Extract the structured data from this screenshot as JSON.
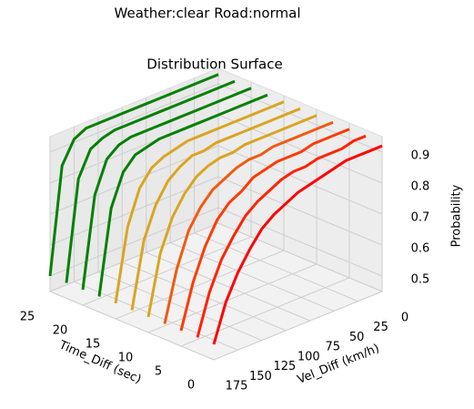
{
  "chart_data": {
    "type": "surface3d",
    "suptitle": "Weather:clear Road:normal",
    "title": "Distribution Surface",
    "xlabel": "Time_Diff (sec)",
    "ylabel": "Vel_Diff (km/h)",
    "zlabel": "Probability",
    "xlim": [
      0,
      25
    ],
    "ylim": [
      0,
      175
    ],
    "zlim": [
      0.45,
      0.95
    ],
    "xticks": [
      0,
      5,
      10,
      15,
      20,
      25
    ],
    "yticks": [
      0,
      25,
      50,
      75,
      100,
      125,
      150,
      175
    ],
    "zticks": [
      0.5,
      0.6,
      0.7,
      0.8,
      0.9
    ],
    "grid": true,
    "y": [
      0,
      12.5,
      25,
      37.5,
      50,
      62.5,
      75,
      87.5,
      100,
      112.5,
      125,
      137.5,
      150,
      162.5,
      175
    ],
    "rows": [
      {
        "x": 0,
        "color": "#ff0000",
        "values": [
          0.92,
          0.92,
          0.92,
          0.92,
          0.91,
          0.9,
          0.89,
          0.88,
          0.86,
          0.84,
          0.81,
          0.76,
          0.7,
          0.62,
          0.5
        ]
      },
      {
        "x": 2.5,
        "color": "#ff2200",
        "values": [
          0.93,
          0.93,
          0.92,
          0.92,
          0.92,
          0.91,
          0.91,
          0.9,
          0.88,
          0.86,
          0.83,
          0.78,
          0.72,
          0.63,
          0.5
        ]
      },
      {
        "x": 5,
        "color": "#ff3a00",
        "values": [
          0.93,
          0.93,
          0.93,
          0.93,
          0.92,
          0.92,
          0.92,
          0.91,
          0.9,
          0.87,
          0.85,
          0.81,
          0.74,
          0.64,
          0.5
        ]
      },
      {
        "x": 7.5,
        "color": "#f05a10",
        "values": [
          0.93,
          0.93,
          0.93,
          0.93,
          0.93,
          0.93,
          0.92,
          0.92,
          0.91,
          0.89,
          0.87,
          0.83,
          0.77,
          0.66,
          0.5
        ]
      },
      {
        "x": 10,
        "color": "#daa520",
        "values": [
          0.93,
          0.93,
          0.93,
          0.93,
          0.93,
          0.93,
          0.93,
          0.92,
          0.92,
          0.91,
          0.89,
          0.85,
          0.79,
          0.69,
          0.5
        ]
      },
      {
        "x": 12.5,
        "color": "#daa520",
        "values": [
          0.93,
          0.93,
          0.93,
          0.93,
          0.93,
          0.93,
          0.93,
          0.93,
          0.92,
          0.92,
          0.9,
          0.87,
          0.81,
          0.71,
          0.5
        ]
      },
      {
        "x": 15,
        "color": "#daa520",
        "values": [
          0.93,
          0.93,
          0.93,
          0.93,
          0.93,
          0.93,
          0.93,
          0.93,
          0.93,
          0.92,
          0.91,
          0.89,
          0.84,
          0.73,
          0.5
        ]
      },
      {
        "x": 17.5,
        "color": "#008000",
        "values": [
          0.93,
          0.93,
          0.93,
          0.93,
          0.93,
          0.93,
          0.93,
          0.93,
          0.93,
          0.93,
          0.92,
          0.91,
          0.87,
          0.77,
          0.5
        ]
      },
      {
        "x": 20,
        "color": "#008000",
        "values": [
          0.93,
          0.93,
          0.93,
          0.93,
          0.93,
          0.93,
          0.93,
          0.93,
          0.93,
          0.93,
          0.93,
          0.92,
          0.89,
          0.79,
          0.5
        ]
      },
      {
        "x": 22.5,
        "color": "#008000",
        "values": [
          0.93,
          0.93,
          0.93,
          0.93,
          0.93,
          0.93,
          0.93,
          0.93,
          0.93,
          0.93,
          0.93,
          0.92,
          0.9,
          0.82,
          0.5
        ]
      },
      {
        "x": 25,
        "color": "#008000",
        "values": [
          0.93,
          0.93,
          0.93,
          0.93,
          0.93,
          0.93,
          0.93,
          0.93,
          0.93,
          0.93,
          0.93,
          0.93,
          0.91,
          0.84,
          0.5
        ]
      }
    ]
  }
}
